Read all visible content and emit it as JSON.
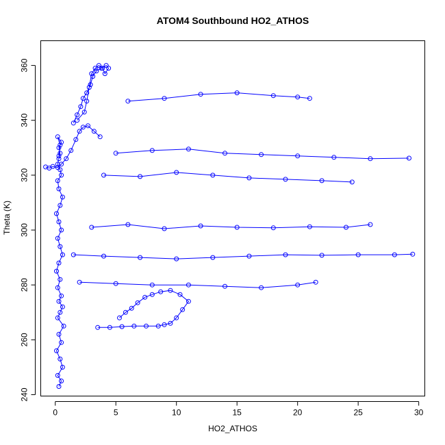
{
  "chart_data": {
    "type": "line",
    "title": "ATOM4 Southbound HO2_ATHOS",
    "xlabel": "HO2_ATHOS",
    "ylabel": "Theta (K)",
    "xlim": [
      -1.2,
      30.5
    ],
    "ylim": [
      239.5,
      369
    ],
    "xticks": [
      0,
      5,
      10,
      15,
      20,
      25,
      30
    ],
    "yticks": [
      240,
      260,
      280,
      300,
      320,
      340,
      360
    ],
    "grid": false,
    "legend": "none",
    "series_color": "#0000ff",
    "marker": "open-circle",
    "series": [
      {
        "x": [
          0.3,
          0.5,
          0.2,
          0.6,
          0.4,
          0.1,
          0.5,
          0.3,
          0.7,
          0.2,
          0.4,
          0.6,
          0.3,
          0.5,
          0.2,
          0.4,
          0.1,
          0.3,
          0.6,
          0.4,
          0.2,
          0.5,
          0.3,
          0.1,
          0.4,
          0.6,
          0.3,
          0.2,
          0.5,
          0.4,
          0.2,
          0.3,
          0.4,
          0.3,
          0.5,
          0.2,
          0.4,
          0.3
        ],
        "y": [
          243,
          245,
          247,
          250,
          253,
          256,
          259,
          262,
          265,
          268,
          270,
          272,
          274,
          276,
          279,
          282,
          285,
          288,
          291,
          294,
          297,
          300,
          303,
          306,
          309,
          312,
          315,
          318,
          320,
          322,
          324,
          326,
          328,
          330,
          332,
          334,
          331,
          327
        ]
      },
      {
        "x": [
          -0.8,
          -0.5,
          -0.2,
          0.2,
          0.5,
          0.9,
          1.3,
          1.7,
          2.0,
          2.3,
          2.7,
          3.2,
          3.7
        ],
        "y": [
          323,
          322.6,
          323.2,
          322.8,
          324,
          326,
          329,
          333,
          336,
          337.5,
          338,
          336,
          334
        ]
      },
      {
        "x": [
          1.8,
          2.4,
          2.6,
          2.8,
          3.0,
          3.3,
          3.6,
          3.9,
          4.1,
          4.4,
          4.2,
          3.8,
          3.4,
          3.1,
          2.9,
          2.6,
          2.3,
          2.1,
          1.8,
          1.5
        ],
        "y": [
          340,
          343,
          347,
          352,
          357,
          359,
          360,
          359,
          357,
          359,
          360,
          359,
          358,
          356,
          353,
          350,
          348,
          345,
          342,
          339
        ]
      },
      {
        "x": [
          3.5,
          4.5,
          5.5,
          6.5,
          7.5,
          8.5,
          9.0,
          9.5,
          10.0,
          10.5,
          11.0,
          10.3,
          9.5,
          8.7,
          8.0,
          7.4,
          6.8,
          6.3,
          5.8,
          5.3
        ],
        "y": [
          264.5,
          264.5,
          264.8,
          265,
          265,
          265,
          265.5,
          266,
          268,
          271,
          274,
          276.5,
          278,
          277.5,
          276.5,
          275.5,
          273.5,
          271.5,
          270,
          268
        ]
      },
      {
        "x": [
          6.0,
          9.0,
          12.0,
          15.0,
          18.0,
          20.0,
          21.0
        ],
        "y": [
          347,
          348,
          349.5,
          350,
          349,
          348.5,
          348
        ]
      },
      {
        "x": [
          5.0,
          8.0,
          11.0,
          14.0,
          17.0,
          20.0,
          23.0,
          26.0,
          29.2
        ],
        "y": [
          328,
          329,
          329.5,
          328,
          327.5,
          327,
          326.5,
          326,
          326.2
        ]
      },
      {
        "x": [
          4.0,
          7.0,
          10.0,
          13.0,
          16.0,
          19.0,
          22.0,
          24.5
        ],
        "y": [
          320,
          319.5,
          321,
          320,
          319,
          318.5,
          318,
          317.5
        ]
      },
      {
        "x": [
          3.0,
          6.0,
          9.0,
          12.0,
          15.0,
          18.0,
          21.0,
          24.0,
          26.0
        ],
        "y": [
          301,
          302,
          300.5,
          301.5,
          301,
          300.8,
          301.2,
          301,
          302
        ]
      },
      {
        "x": [
          1.5,
          4.0,
          7.0,
          10.0,
          13.0,
          16.0,
          19.0,
          22.0,
          25.0,
          28.0,
          29.5
        ],
        "y": [
          291,
          290.5,
          290,
          289.5,
          290,
          290.5,
          291,
          290.8,
          291,
          291,
          291.2
        ]
      },
      {
        "x": [
          2.0,
          5.0,
          8.0,
          11.0,
          14.0,
          17.0,
          20.0,
          21.5
        ],
        "y": [
          281,
          280.5,
          280,
          280,
          279.5,
          279,
          280,
          281
        ]
      }
    ]
  }
}
